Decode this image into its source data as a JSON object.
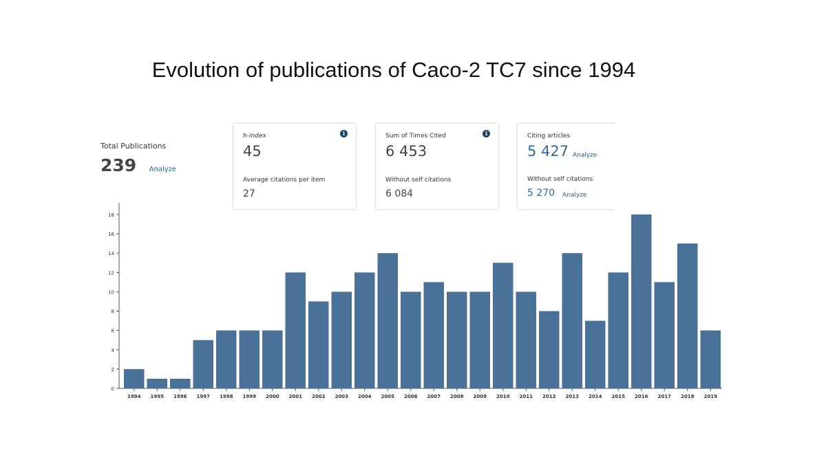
{
  "slide_title": "Evolution of publications of Caco-2 TC7 since 1994",
  "total": {
    "label": "Total Publications",
    "value": "239",
    "link": "Analyze"
  },
  "cards": {
    "hindex": {
      "label": "h-index",
      "value": "45",
      "sub_label": "Average citations per item",
      "sub_value": "27",
      "info": "i"
    },
    "times_cited": {
      "label": "Sum of Times Cited",
      "value": "6 453",
      "sub_label": "Without self citations",
      "sub_value": "6 084",
      "info": "i"
    },
    "citing": {
      "label": "Citing articles",
      "value": "5 427",
      "link": "Analyze",
      "sub_label": "Without self citations",
      "sub_value": "5 270",
      "sub_link": "Analyze"
    }
  },
  "colors": {
    "bar": "#4a7299",
    "link": "#1f5f8f"
  },
  "chart_data": {
    "type": "bar",
    "title": "",
    "xlabel": "",
    "ylabel": "",
    "categories": [
      "1994",
      "1995",
      "1996",
      "1997",
      "1998",
      "1999",
      "2000",
      "2001",
      "2002",
      "2003",
      "2004",
      "2005",
      "2006",
      "2007",
      "2008",
      "2009",
      "2010",
      "2011",
      "2012",
      "2013",
      "2014",
      "2015",
      "2016",
      "2017",
      "2018",
      "2019"
    ],
    "values": [
      2,
      1,
      1,
      5,
      6,
      6,
      6,
      12,
      9,
      10,
      12,
      14,
      10,
      11,
      10,
      10,
      13,
      10,
      8,
      14,
      7,
      12,
      18,
      11,
      15,
      6
    ],
    "ylim": [
      0,
      19
    ],
    "yticks": [
      0,
      2,
      4,
      6,
      8,
      10,
      12,
      14,
      16,
      18
    ],
    "grid": false
  }
}
